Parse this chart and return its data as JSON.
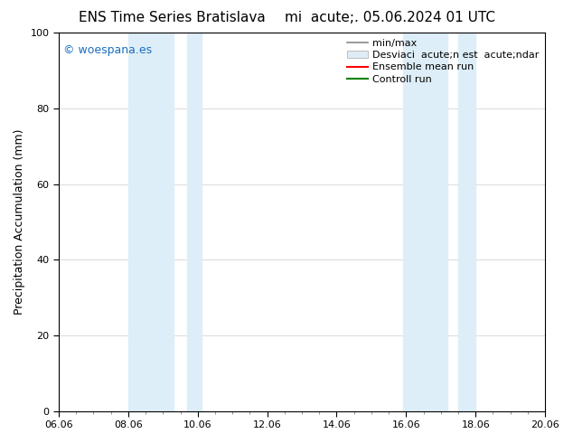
{
  "title_left": "ENS Time Series Bratislava",
  "title_right": "mi  acute;. 05.06.2024 01 UTC",
  "ylabel": "Precipitation Accumulation (mm)",
  "watermark": "© woespana.es",
  "ylim": [
    0,
    100
  ],
  "xlim": [
    0,
    14
  ],
  "xtick_labels": [
    "06.06",
    "08.06",
    "10.06",
    "12.06",
    "14.06",
    "16.06",
    "18.06",
    "20.06"
  ],
  "xtick_positions": [
    0,
    2,
    4,
    6,
    8,
    10,
    12,
    14
  ],
  "ytick_positions": [
    0,
    20,
    40,
    60,
    80,
    100
  ],
  "shaded_regions": [
    {
      "x_start": 2.0,
      "x_end": 3.3,
      "color": "#ddeef8"
    },
    {
      "x_start": 3.7,
      "x_end": 4.1,
      "color": "#ddeef8"
    },
    {
      "x_start": 9.9,
      "x_end": 11.2,
      "color": "#ddeef8"
    },
    {
      "x_start": 11.5,
      "x_end": 12.0,
      "color": "#ddeef8"
    }
  ],
  "background_color": "#ffffff",
  "grid_color": "#cccccc",
  "watermark_color": "#1a6ebd",
  "font_size_title": 11,
  "font_size_labels": 9,
  "font_size_ticks": 8,
  "font_size_legend": 8,
  "font_size_watermark": 9
}
